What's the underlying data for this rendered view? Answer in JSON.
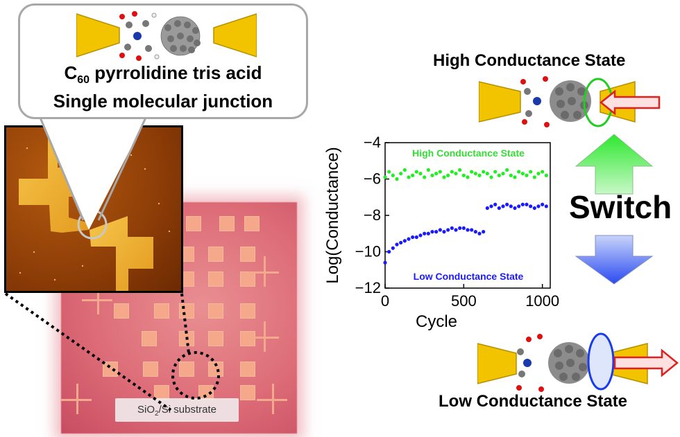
{
  "callout": {
    "title_line1_prefix": "C",
    "title_line1_sub": "60",
    "title_line1_rest": " pyrrolidine tris acid",
    "title_line2": "Single molecular junction"
  },
  "substrate": {
    "label_prefix": "SiO",
    "label_sub": "2",
    "label_rest": "/Si substrate"
  },
  "states": {
    "high_title": "High Conductance State",
    "low_title": "Low Conductance State",
    "switch_label": "Switch"
  },
  "colors": {
    "high": "#22cc22",
    "low": "#1a1aff",
    "gold": "#f2c400",
    "arrow_red": "#e02020"
  },
  "chart_data": {
    "type": "scatter",
    "xlabel": "Cycle",
    "ylabel": "Log(Conductance)",
    "xlim": [
      0,
      1050
    ],
    "ylim": [
      -12,
      -4
    ],
    "xticks": [
      0,
      500,
      1000
    ],
    "yticks": [
      -4,
      -6,
      -8,
      -10,
      -12
    ],
    "annotations": [
      "High Conductance State",
      "Low Conductance State"
    ],
    "series": [
      {
        "color": "#22ee22",
        "x": [
          0,
          25,
          50,
          75,
          100,
          125,
          150,
          175,
          200,
          225,
          250,
          275,
          300,
          325,
          350,
          375,
          400,
          425,
          450,
          475,
          500,
          525,
          550,
          575,
          600,
          625,
          650,
          675,
          700,
          725,
          750,
          775,
          800,
          825,
          850,
          875,
          900,
          925,
          950,
          975,
          1000,
          1025
        ],
        "values": [
          -5.9,
          -5.6,
          -5.8,
          -6.0,
          -5.7,
          -5.5,
          -5.9,
          -5.8,
          -5.6,
          -5.7,
          -5.9,
          -5.5,
          -5.8,
          -5.7,
          -5.6,
          -5.9,
          -5.8,
          -5.6,
          -5.7,
          -5.5,
          -5.8,
          -5.9,
          -5.6,
          -5.7,
          -5.8,
          -5.6,
          -5.7,
          -5.9,
          -5.6,
          -5.8,
          -5.7,
          -5.5,
          -5.8,
          -5.9,
          -5.6,
          -5.7,
          -5.8,
          -5.6,
          -5.9,
          -5.7,
          -5.6,
          -5.8
        ]
      },
      {
        "color": "#1a1aff",
        "x": [
          0,
          25,
          50,
          75,
          100,
          125,
          150,
          175,
          200,
          225,
          250,
          275,
          300,
          325,
          350,
          375,
          400,
          425,
          450,
          475,
          500,
          525,
          550,
          575,
          600,
          625,
          650,
          675,
          700,
          725,
          750,
          775,
          800,
          825,
          850,
          875,
          900,
          925,
          950,
          975,
          1000,
          1025
        ],
        "values": [
          -10.6,
          -10.0,
          -9.8,
          -9.6,
          -9.5,
          -9.4,
          -9.3,
          -9.2,
          -9.2,
          -9.1,
          -9.0,
          -9.0,
          -8.9,
          -8.9,
          -8.8,
          -8.9,
          -8.8,
          -8.7,
          -8.8,
          -8.7,
          -8.7,
          -8.8,
          -8.8,
          -8.9,
          -9.0,
          -8.9,
          -7.6,
          -7.5,
          -7.4,
          -7.6,
          -7.5,
          -7.4,
          -7.5,
          -7.6,
          -7.5,
          -7.4,
          -7.4,
          -7.5,
          -7.6,
          -7.5,
          -7.4,
          -7.5
        ]
      }
    ]
  }
}
